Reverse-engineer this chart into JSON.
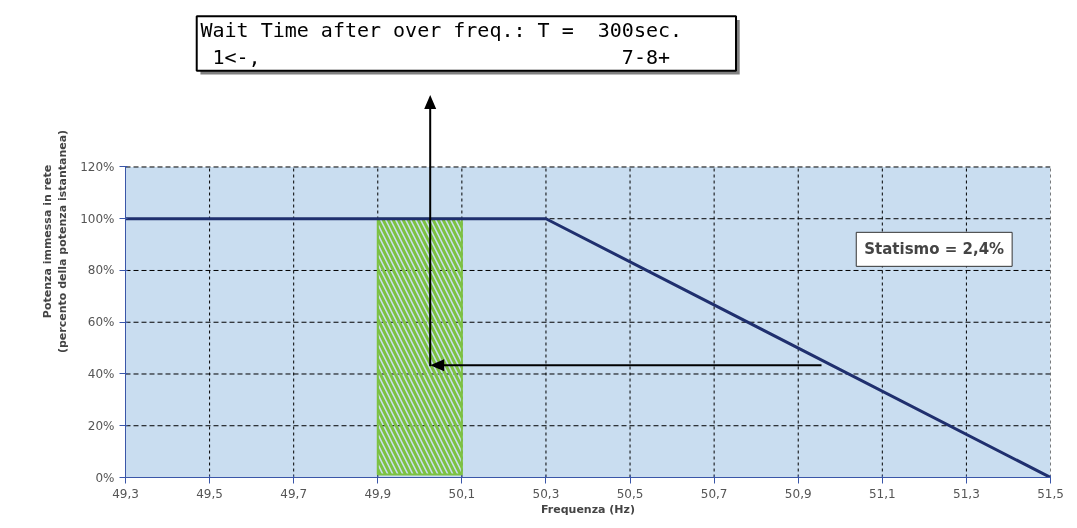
{
  "chart_data": {
    "type": "line",
    "xlabel": "Frequenza (Hz)",
    "ylabel": "Potenza immessa in rete\n(percento della potenza istantanea)",
    "x": [
      49.3,
      50.3,
      51.5
    ],
    "series": [
      {
        "color": "#1f2f6e",
        "values": [
          100,
          100,
          0
        ]
      }
    ],
    "xlim": [
      49.3,
      51.5
    ],
    "xticks": [
      {
        "value": 49.3,
        "label": "49,3"
      },
      {
        "value": 49.5,
        "label": "49,5"
      },
      {
        "value": 49.7,
        "label": "49,7"
      },
      {
        "value": 49.9,
        "label": "49,9"
      },
      {
        "value": 50.1,
        "label": "50,1"
      },
      {
        "value": 50.3,
        "label": "50,3"
      },
      {
        "value": 50.5,
        "label": "50,5"
      },
      {
        "value": 50.7,
        "label": "50,7"
      },
      {
        "value": 50.9,
        "label": "50,9"
      },
      {
        "value": 51.1,
        "label": "51,1"
      },
      {
        "value": 51.3,
        "label": "51,3"
      },
      {
        "value": 51.5,
        "label": "51,5"
      }
    ],
    "ylim": [
      0,
      120
    ],
    "yticks": [
      {
        "value": 0,
        "label": "0%"
      },
      {
        "value": 20,
        "label": "20%"
      },
      {
        "value": 40,
        "label": "40%"
      },
      {
        "value": 60,
        "label": "60%"
      },
      {
        "value": 80,
        "label": "80%"
      },
      {
        "value": 100,
        "label": "100%"
      },
      {
        "value": 120,
        "label": "120%"
      }
    ],
    "bands": [
      {
        "axis": "x",
        "from": 49.9,
        "to": 50.1,
        "color": "#7dc242"
      }
    ],
    "annotations": [
      "Wait Time after over freq.: T =  300sec.\n 1<-,                              7-8+",
      "Statismo = 2,4%"
    ],
    "grid": true,
    "line_style": "solid",
    "marker": "none"
  }
}
